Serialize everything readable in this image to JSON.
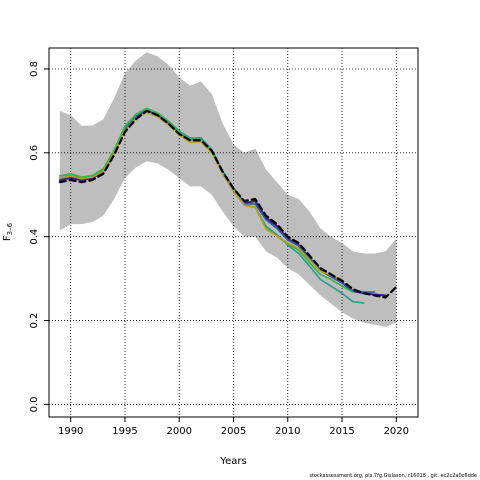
{
  "chart_data": {
    "type": "line",
    "xlabel": "Years",
    "ylabel": "F",
    "ylabel_sub": "3–6",
    "xlim": [
      1988,
      2022
    ],
    "ylim": [
      -0.03,
      0.85
    ],
    "xticks": [
      1990,
      1995,
      2000,
      2005,
      2010,
      2015,
      2020
    ],
    "yticks": [
      0.0,
      0.2,
      0.4,
      0.6,
      0.8
    ],
    "ytick_labels": [
      "0.0",
      "0.2",
      "0.4",
      "0.6",
      "0.8"
    ],
    "grid": true,
    "band": {
      "color": "#bebebe",
      "x": [
        1989,
        1990,
        1991,
        1992,
        1993,
        1994,
        1995,
        1996,
        1997,
        1998,
        1999,
        2000,
        2001,
        2002,
        2003,
        2004,
        2005,
        2006,
        2007,
        2008,
        2009,
        2010,
        2011,
        2012,
        2013,
        2014,
        2015,
        2016,
        2017,
        2018,
        2019,
        2020
      ],
      "upper": [
        0.7,
        0.69,
        0.665,
        0.665,
        0.68,
        0.73,
        0.79,
        0.82,
        0.84,
        0.83,
        0.81,
        0.78,
        0.76,
        0.77,
        0.74,
        0.67,
        0.62,
        0.6,
        0.61,
        0.56,
        0.53,
        0.5,
        0.49,
        0.46,
        0.42,
        0.4,
        0.385,
        0.365,
        0.36,
        0.36,
        0.365,
        0.395
      ],
      "lower": [
        0.415,
        0.43,
        0.43,
        0.435,
        0.45,
        0.49,
        0.54,
        0.565,
        0.58,
        0.575,
        0.56,
        0.54,
        0.52,
        0.52,
        0.5,
        0.46,
        0.425,
        0.4,
        0.4,
        0.365,
        0.35,
        0.325,
        0.31,
        0.285,
        0.26,
        0.24,
        0.22,
        0.205,
        0.195,
        0.19,
        0.185,
        0.195
      ]
    },
    "series": [
      {
        "color": "#000000",
        "dashed": true,
        "width": 2.2,
        "x": [
          1989,
          1990,
          1991,
          1992,
          1993,
          1994,
          1995,
          1996,
          1997,
          1998,
          1999,
          2000,
          2001,
          2002,
          2003,
          2004,
          2005,
          2006,
          2007,
          2008,
          2009,
          2010,
          2011,
          2012,
          2013,
          2014,
          2015,
          2016,
          2017,
          2018,
          2019,
          2020
        ],
        "values": [
          0.53,
          0.535,
          0.53,
          0.535,
          0.55,
          0.595,
          0.65,
          0.68,
          0.7,
          0.69,
          0.67,
          0.645,
          0.63,
          0.63,
          0.605,
          0.555,
          0.515,
          0.485,
          0.49,
          0.45,
          0.43,
          0.4,
          0.385,
          0.355,
          0.325,
          0.31,
          0.295,
          0.275,
          0.265,
          0.26,
          0.255,
          0.28
        ]
      },
      {
        "color": "#3b1d8a",
        "dashed": false,
        "width": 2.0,
        "x": [
          1989,
          1990,
          1991,
          1992,
          1993,
          1994,
          1995,
          1996,
          1997,
          1998,
          1999,
          2000,
          2001,
          2002,
          2003,
          2004,
          2005,
          2006,
          2007,
          2008,
          2009,
          2010,
          2011,
          2012,
          2013,
          2014,
          2015,
          2016,
          2017,
          2018,
          2019
        ],
        "values": [
          0.535,
          0.54,
          0.535,
          0.54,
          0.555,
          0.6,
          0.655,
          0.685,
          0.7,
          0.69,
          0.672,
          0.648,
          0.632,
          0.632,
          0.606,
          0.555,
          0.515,
          0.48,
          0.485,
          0.445,
          0.425,
          0.395,
          0.38,
          0.35,
          0.32,
          0.305,
          0.29,
          0.27,
          0.265,
          0.262,
          0.26
        ]
      },
      {
        "color": "#2f5fa6",
        "dashed": false,
        "width": 1.6,
        "x": [
          1989,
          1990,
          1991,
          1992,
          1993,
          1994,
          1995,
          1996,
          1997,
          1998,
          1999,
          2000,
          2001,
          2002,
          2003,
          2004,
          2005,
          2006,
          2007,
          2008,
          2009,
          2010,
          2011,
          2012,
          2013,
          2014,
          2015,
          2016,
          2017,
          2018
        ],
        "values": [
          0.54,
          0.545,
          0.54,
          0.545,
          0.558,
          0.603,
          0.658,
          0.688,
          0.703,
          0.693,
          0.674,
          0.65,
          0.633,
          0.634,
          0.607,
          0.556,
          0.514,
          0.478,
          0.478,
          0.44,
          0.42,
          0.392,
          0.378,
          0.35,
          0.322,
          0.305,
          0.29,
          0.272,
          0.268,
          0.268
        ]
      },
      {
        "color": "#2a9d8f",
        "dashed": false,
        "width": 1.6,
        "x": [
          1989,
          1990,
          1991,
          1992,
          1993,
          1994,
          1995,
          1996,
          1997,
          1998,
          1999,
          2000,
          2001,
          2002,
          2003,
          2004,
          2005,
          2006,
          2007,
          2008,
          2009,
          2010,
          2011,
          2012,
          2013,
          2014,
          2015,
          2016,
          2017
        ],
        "values": [
          0.545,
          0.548,
          0.54,
          0.545,
          0.56,
          0.605,
          0.662,
          0.69,
          0.706,
          0.695,
          0.676,
          0.652,
          0.635,
          0.636,
          0.608,
          0.556,
          0.512,
          0.476,
          0.47,
          0.425,
          0.405,
          0.38,
          0.36,
          0.33,
          0.298,
          0.282,
          0.265,
          0.245,
          0.242
        ]
      },
      {
        "color": "#3cb44b",
        "dashed": false,
        "width": 1.6,
        "x": [
          1989,
          1990,
          1991,
          1992,
          1993,
          1994,
          1995,
          1996,
          1997,
          1998,
          1999,
          2000,
          2001,
          2002,
          2003,
          2004,
          2005,
          2006,
          2007,
          2008,
          2009,
          2010,
          2011,
          2012,
          2013,
          2014,
          2015,
          2016
        ],
        "values": [
          0.545,
          0.55,
          0.542,
          0.546,
          0.562,
          0.607,
          0.664,
          0.692,
          0.706,
          0.694,
          0.675,
          0.65,
          0.632,
          0.632,
          0.604,
          0.553,
          0.51,
          0.475,
          0.47,
          0.42,
          0.402,
          0.382,
          0.368,
          0.338,
          0.31,
          0.298,
          0.282,
          0.268
        ]
      },
      {
        "color": "#b5a016",
        "dashed": false,
        "width": 1.6,
        "x": [
          1989,
          1990,
          1991,
          1992,
          1993,
          1994,
          1995,
          1996,
          1997,
          1998,
          1999,
          2000,
          2001,
          2002,
          2003,
          2004,
          2005,
          2006,
          2007,
          2008,
          2009,
          2010,
          2011,
          2012,
          2013,
          2014,
          2015
        ],
        "values": [
          0.54,
          0.545,
          0.538,
          0.542,
          0.556,
          0.6,
          0.653,
          0.682,
          0.697,
          0.686,
          0.667,
          0.643,
          0.625,
          0.626,
          0.6,
          0.55,
          0.508,
          0.475,
          0.47,
          0.418,
          0.402,
          0.385,
          0.372,
          0.345,
          0.318,
          0.308,
          0.298
        ]
      }
    ]
  },
  "footer": "stockassessment.org, pls.7fg.Gislason, r16018 , git: ec2c2a0c6dde"
}
